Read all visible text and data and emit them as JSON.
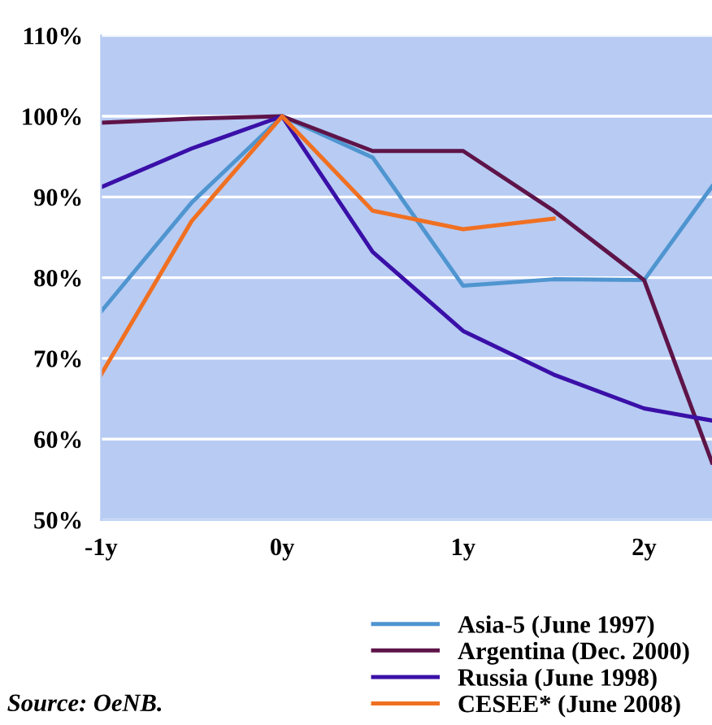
{
  "chart_data": {
    "type": "line",
    "xlim": [
      -1,
      2.375
    ],
    "ylim": [
      50,
      110
    ],
    "xticks": [
      {
        "value": -1,
        "label": "-1y"
      },
      {
        "value": 0,
        "label": "0y"
      },
      {
        "value": 1,
        "label": "1y"
      },
      {
        "value": 2,
        "label": "2y"
      }
    ],
    "yticks": [
      {
        "value": 50,
        "label": "50%"
      },
      {
        "value": 60,
        "label": "60%"
      },
      {
        "value": 70,
        "label": "70%"
      },
      {
        "value": 80,
        "label": "80%"
      },
      {
        "value": 90,
        "label": "90%"
      },
      {
        "value": 100,
        "label": "100%"
      },
      {
        "value": 110,
        "label": "110%"
      }
    ],
    "series": [
      {
        "name": "Asia-5 (June 1997)",
        "color": "#4f95d0",
        "x": [
          -1,
          -0.5,
          0,
          0.5,
          1,
          1.5,
          2,
          2.375
        ],
        "values": [
          75.8,
          89.3,
          100,
          94.9,
          79,
          79.8,
          79.7,
          91.3
        ]
      },
      {
        "name": "Argentina (Dec. 2000)",
        "color": "#5e1448",
        "x": [
          -1,
          -0.5,
          0,
          0.5,
          1,
          1.5,
          2,
          2.375
        ],
        "values": [
          99.2,
          99.7,
          100,
          95.7,
          95.7,
          88.3,
          79.7,
          57.1
        ]
      },
      {
        "name": "Russia (June 1998)",
        "color": "#3a10a8",
        "x": [
          -1,
          -0.5,
          0,
          0.5,
          1,
          1.5,
          2,
          2.375
        ],
        "values": [
          91.2,
          96,
          100,
          83.2,
          73.4,
          68,
          63.8,
          62.3
        ]
      },
      {
        "name": "CESEE* (June 2008)",
        "color": "#f07022",
        "x": [
          -1,
          -0.5,
          0,
          0.5,
          1,
          1.5
        ],
        "values": [
          68,
          87,
          100,
          88.3,
          86,
          87.3
        ]
      }
    ],
    "grid": "y",
    "legend": "bottom right",
    "marker": "none",
    "line_style": "solid",
    "annotations": [
      "Source: OeNB."
    ]
  }
}
